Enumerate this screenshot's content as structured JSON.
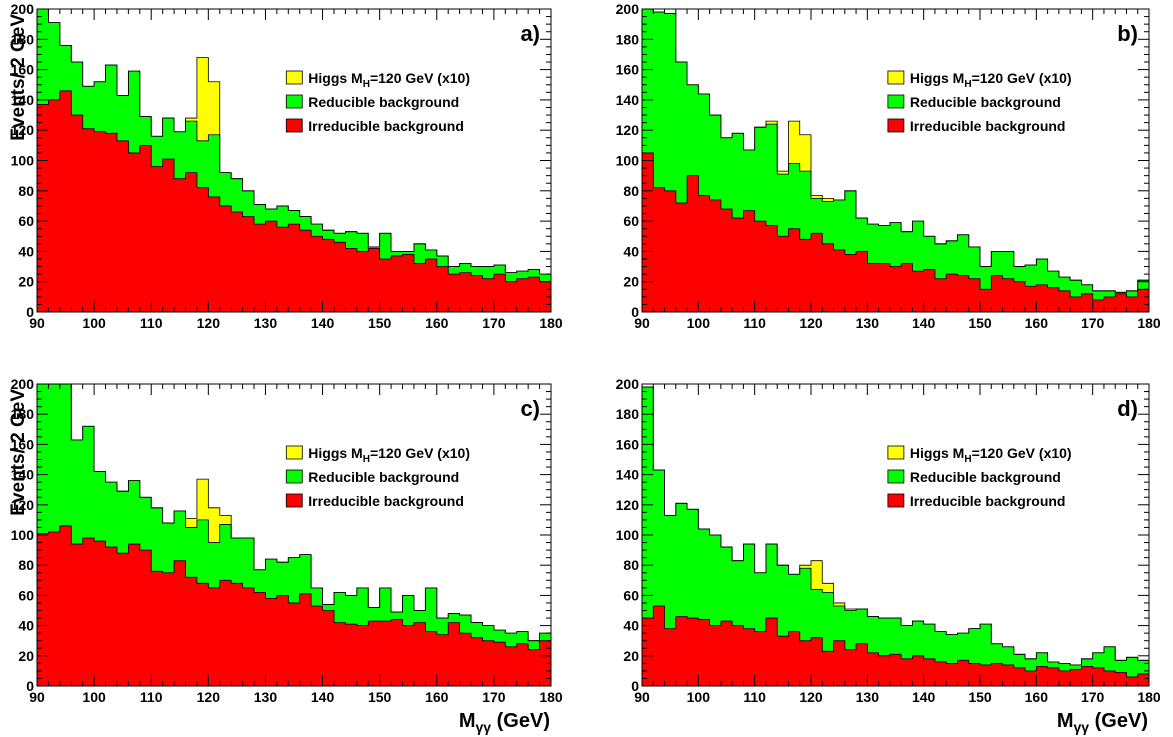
{
  "figure": {
    "ylabel": "Events/ 2 GeV",
    "xlabel_main": "M",
    "xlabel_sub": "γγ",
    "xlabel_unit": " (GeV)"
  },
  "legend": {
    "entries": [
      {
        "key": "higgs",
        "text_main": "Higgs M",
        "text_sub": "H",
        "text_rest": "=120 GeV (x10)",
        "color": "#ffff00"
      },
      {
        "key": "reducible",
        "text_main": "Reducible background",
        "text_sub": "",
        "text_rest": "",
        "color": "#00ff00"
      },
      {
        "key": "irreducible",
        "text_main": "Irreducible background",
        "text_sub": "",
        "text_rest": "",
        "color": "#ff0000"
      }
    ]
  },
  "chart_data": [
    {
      "type": "area",
      "panel_label": "a)",
      "xlim": [
        90,
        180
      ],
      "ylim": [
        0,
        200
      ],
      "bin_width": 2,
      "bin_starts": [
        90,
        92,
        94,
        96,
        98,
        100,
        102,
        104,
        106,
        108,
        110,
        112,
        114,
        116,
        118,
        120,
        122,
        124,
        126,
        128,
        130,
        132,
        134,
        136,
        138,
        140,
        142,
        144,
        146,
        148,
        150,
        152,
        154,
        156,
        158,
        160,
        162,
        164,
        166,
        168,
        170,
        172,
        174,
        176,
        178
      ],
      "series": [
        {
          "name": "Irreducible background",
          "color": "#ff0000",
          "values": [
            137,
            140,
            146,
            130,
            121,
            119,
            118,
            113,
            105,
            110,
            96,
            101,
            88,
            92,
            82,
            76,
            70,
            66,
            63,
            58,
            60,
            56,
            58,
            54,
            50,
            48,
            46,
            42,
            40,
            42,
            35,
            37,
            38,
            32,
            35,
            30,
            25,
            26,
            24,
            22,
            25,
            20,
            22,
            23,
            20
          ]
        },
        {
          "name": "Reducible background",
          "color": "#00ff00",
          "values": [
            200,
            191,
            176,
            165,
            149,
            152,
            163,
            143,
            159,
            129,
            116,
            128,
            119,
            126,
            113,
            117,
            92,
            88,
            80,
            71,
            68,
            70,
            67,
            63,
            58,
            54,
            52,
            53,
            52,
            43,
            52,
            40,
            40,
            45,
            41,
            37,
            30,
            32,
            30,
            30,
            31,
            26,
            27,
            28,
            25
          ]
        },
        {
          "name": "Higgs MH=120 GeV (x10)",
          "color": "#ffff00",
          "values": [
            200,
            191,
            176,
            165,
            149,
            152,
            163,
            143,
            159,
            129,
            116,
            128,
            119,
            128,
            168,
            152,
            92,
            88,
            80,
            71,
            68,
            70,
            67,
            63,
            58,
            54,
            52,
            53,
            52,
            43,
            52,
            40,
            40,
            45,
            41,
            37,
            30,
            32,
            30,
            30,
            31,
            26,
            27,
            28,
            25
          ]
        }
      ]
    },
    {
      "type": "area",
      "panel_label": "b)",
      "xlim": [
        90,
        180
      ],
      "ylim": [
        0,
        200
      ],
      "bin_width": 2,
      "bin_starts": [
        90,
        92,
        94,
        96,
        98,
        100,
        102,
        104,
        106,
        108,
        110,
        112,
        114,
        116,
        118,
        120,
        122,
        124,
        126,
        128,
        130,
        132,
        134,
        136,
        138,
        140,
        142,
        144,
        146,
        148,
        150,
        152,
        154,
        156,
        158,
        160,
        162,
        164,
        166,
        168,
        170,
        172,
        174,
        176,
        178
      ],
      "series": [
        {
          "name": "Irreducible background",
          "color": "#ff0000",
          "values": [
            105,
            82,
            80,
            72,
            90,
            77,
            74,
            68,
            62,
            67,
            60,
            57,
            50,
            55,
            48,
            52,
            45,
            41,
            38,
            40,
            32,
            32,
            30,
            32,
            27,
            28,
            22,
            25,
            24,
            22,
            15,
            24,
            22,
            20,
            17,
            18,
            16,
            14,
            10,
            12,
            8,
            10,
            12,
            10,
            15
          ]
        },
        {
          "name": "Reducible background",
          "color": "#00ff00",
          "values": [
            200,
            198,
            197,
            165,
            150,
            144,
            130,
            115,
            118,
            107,
            122,
            124,
            91,
            98,
            93,
            75,
            73,
            74,
            80,
            62,
            58,
            57,
            59,
            53,
            60,
            50,
            45,
            47,
            51,
            43,
            30,
            40,
            40,
            30,
            31,
            35,
            27,
            23,
            21,
            18,
            14,
            14,
            13,
            14,
            21
          ]
        },
        {
          "name": "Higgs MH=120 GeV (x10)",
          "color": "#ffff00",
          "values": [
            200,
            198,
            197,
            165,
            150,
            144,
            130,
            115,
            118,
            107,
            122,
            126,
            93,
            126,
            117,
            77,
            75,
            74,
            80,
            62,
            58,
            57,
            59,
            53,
            60,
            50,
            45,
            47,
            51,
            43,
            30,
            40,
            40,
            30,
            31,
            35,
            27,
            23,
            21,
            18,
            14,
            14,
            13,
            14,
            21
          ]
        }
      ]
    },
    {
      "type": "area",
      "panel_label": "c)",
      "xlim": [
        90,
        180
      ],
      "ylim": [
        0,
        200
      ],
      "bin_width": 2,
      "bin_starts": [
        90,
        92,
        94,
        96,
        98,
        100,
        102,
        104,
        106,
        108,
        110,
        112,
        114,
        116,
        118,
        120,
        122,
        124,
        126,
        128,
        130,
        132,
        134,
        136,
        138,
        140,
        142,
        144,
        146,
        148,
        150,
        152,
        154,
        156,
        158,
        160,
        162,
        164,
        166,
        168,
        170,
        172,
        174,
        176,
        178
      ],
      "series": [
        {
          "name": "Irreducible background",
          "color": "#ff0000",
          "values": [
            101,
            102,
            106,
            94,
            98,
            96,
            92,
            88,
            94,
            90,
            76,
            75,
            83,
            72,
            68,
            65,
            70,
            68,
            65,
            62,
            58,
            60,
            55,
            61,
            53,
            50,
            42,
            41,
            40,
            43,
            43,
            44,
            40,
            42,
            36,
            34,
            42,
            35,
            32,
            30,
            29,
            26,
            28,
            24,
            30
          ]
        },
        {
          "name": "Reducible background",
          "color": "#00ff00",
          "values": [
            200,
            200,
            200,
            163,
            172,
            142,
            135,
            129,
            136,
            125,
            118,
            108,
            116,
            105,
            110,
            95,
            107,
            98,
            98,
            77,
            84,
            82,
            85,
            87,
            65,
            54,
            62,
            60,
            65,
            52,
            65,
            49,
            60,
            50,
            65,
            45,
            48,
            47,
            42,
            40,
            37,
            35,
            36,
            30,
            35
          ]
        },
        {
          "name": "Higgs MH=120 GeV (x10)",
          "color": "#ffff00",
          "values": [
            200,
            200,
            200,
            163,
            172,
            142,
            135,
            129,
            136,
            125,
            118,
            108,
            116,
            111,
            137,
            118,
            113,
            98,
            98,
            77,
            84,
            82,
            85,
            87,
            65,
            54,
            62,
            60,
            65,
            52,
            65,
            49,
            60,
            50,
            65,
            45,
            48,
            47,
            42,
            40,
            37,
            35,
            36,
            30,
            35
          ]
        }
      ]
    },
    {
      "type": "area",
      "panel_label": "d)",
      "xlim": [
        90,
        180
      ],
      "ylim": [
        0,
        200
      ],
      "bin_width": 2,
      "bin_starts": [
        90,
        92,
        94,
        96,
        98,
        100,
        102,
        104,
        106,
        108,
        110,
        112,
        114,
        116,
        118,
        120,
        122,
        124,
        126,
        128,
        130,
        132,
        134,
        136,
        138,
        140,
        142,
        144,
        146,
        148,
        150,
        152,
        154,
        156,
        158,
        160,
        162,
        164,
        166,
        168,
        170,
        172,
        174,
        176,
        178
      ],
      "series": [
        {
          "name": "Irreducible background",
          "color": "#ff0000",
          "values": [
            45,
            53,
            38,
            46,
            45,
            44,
            40,
            43,
            40,
            38,
            36,
            45,
            33,
            36,
            30,
            32,
            23,
            30,
            24,
            28,
            22,
            20,
            21,
            18,
            20,
            18,
            16,
            15,
            17,
            15,
            14,
            15,
            14,
            12,
            10,
            13,
            12,
            10,
            11,
            13,
            12,
            10,
            9,
            6,
            8
          ]
        },
        {
          "name": "Reducible background",
          "color": "#00ff00",
          "values": [
            198,
            143,
            113,
            121,
            117,
            104,
            100,
            92,
            83,
            94,
            75,
            94,
            80,
            74,
            78,
            64,
            62,
            53,
            50,
            51,
            46,
            45,
            45,
            40,
            43,
            41,
            36,
            34,
            35,
            38,
            41,
            28,
            26,
            21,
            18,
            22,
            16,
            15,
            14,
            18,
            22,
            26,
            17,
            19,
            17
          ]
        },
        {
          "name": "Higgs MH=120 GeV (x10)",
          "color": "#ffff00",
          "values": [
            198,
            143,
            113,
            121,
            117,
            104,
            100,
            92,
            83,
            94,
            75,
            94,
            80,
            74,
            80,
            83,
            68,
            55,
            51,
            51,
            46,
            45,
            45,
            40,
            43,
            41,
            36,
            34,
            35,
            38,
            41,
            28,
            26,
            21,
            18,
            22,
            16,
            15,
            14,
            18,
            22,
            26,
            17,
            19,
            17
          ]
        }
      ]
    }
  ]
}
